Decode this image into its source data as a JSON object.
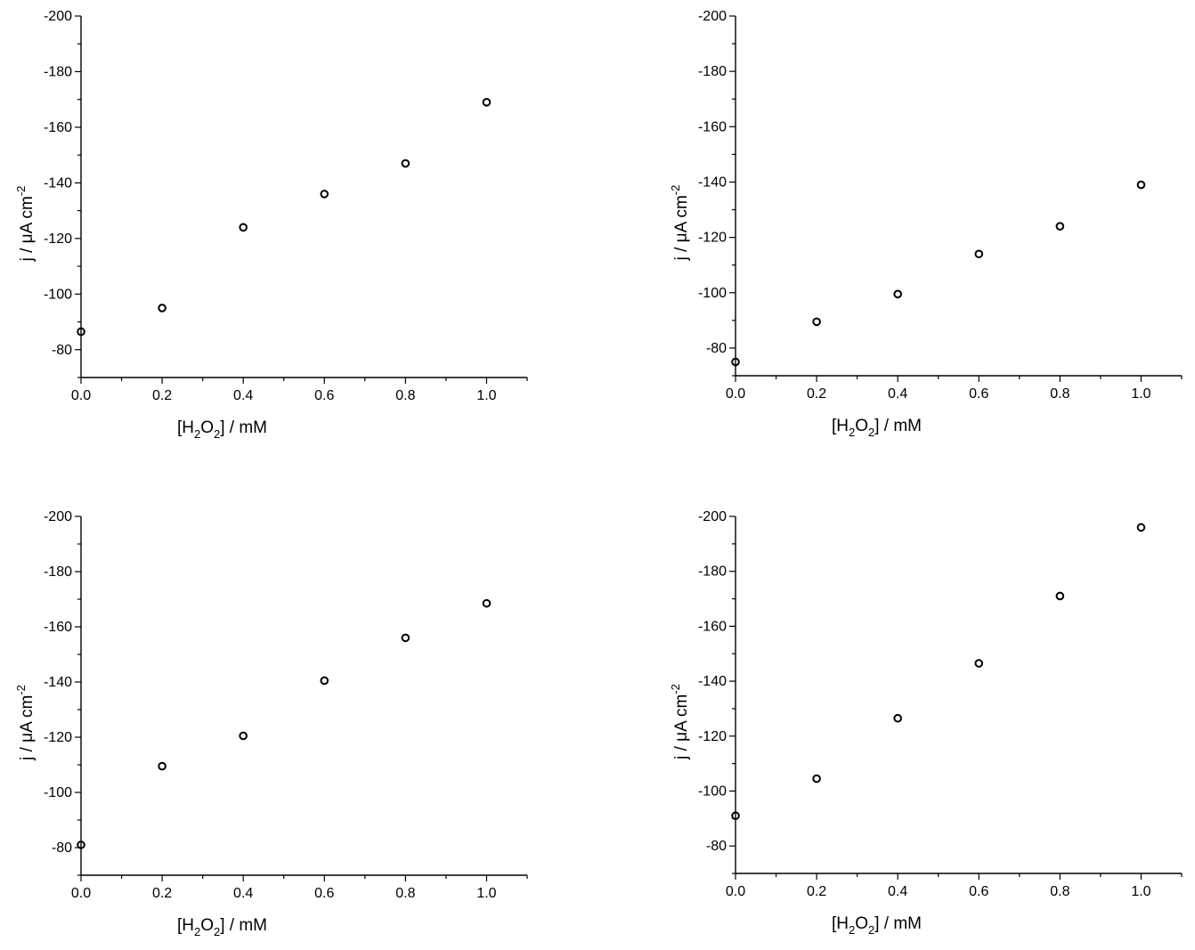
{
  "chart_data": [
    {
      "type": "scatter",
      "x": [
        0.0,
        0.2,
        0.4,
        0.6,
        0.8,
        1.0
      ],
      "y": [
        -86.5,
        -95,
        -124,
        -136,
        -147,
        -169
      ],
      "xlim": [
        0.0,
        1.1
      ],
      "ylim": [
        -70,
        -200
      ],
      "xticks": [
        "0.0",
        "0.2",
        "0.4",
        "0.6",
        "0.8",
        "1.0"
      ],
      "yticks": [
        "-80",
        "-100",
        "-120",
        "-140",
        "-160",
        "-180",
        "-200"
      ],
      "xlabel": {
        "pre": "[H",
        "sub1": "2",
        "mid": "O",
        "sub2": "2",
        "post": "] / mM"
      },
      "ylabel": {
        "main": "j / μA cm",
        "sup": "-2"
      },
      "marker": "open-circle",
      "grid": false
    },
    {
      "type": "scatter",
      "x": [
        0.0,
        0.2,
        0.4,
        0.6,
        0.8,
        1.0
      ],
      "y": [
        -75,
        -89.5,
        -99.5,
        -114,
        -124,
        -139
      ],
      "xlim": [
        0.0,
        1.1
      ],
      "ylim": [
        -70,
        -200
      ],
      "xticks": [
        "0.0",
        "0.2",
        "0.4",
        "0.6",
        "0.8",
        "1.0"
      ],
      "yticks": [
        "-80",
        "-100",
        "-120",
        "-140",
        "-160",
        "-180",
        "-200"
      ],
      "xlabel": {
        "pre": "[H",
        "sub1": "2",
        "mid": "O",
        "sub2": "2",
        "post": "] / mM"
      },
      "ylabel": {
        "main": "j / μA cm",
        "sup": "-2"
      },
      "marker": "open-circle",
      "grid": false
    },
    {
      "type": "scatter",
      "x": [
        0.0,
        0.2,
        0.4,
        0.6,
        0.8,
        1.0
      ],
      "y": [
        -81,
        -109.5,
        -120.5,
        -140.5,
        -156,
        -168.5
      ],
      "xlim": [
        0.0,
        1.1
      ],
      "ylim": [
        -70,
        -200
      ],
      "xticks": [
        "0.0",
        "0.2",
        "0.4",
        "0.6",
        "0.8",
        "1.0"
      ],
      "yticks": [
        "-80",
        "-100",
        "-120",
        "-140",
        "-160",
        "-180",
        "-200"
      ],
      "xlabel": {
        "pre": "[H",
        "sub1": "2",
        "mid": "O",
        "sub2": "2",
        "post": "] / mM"
      },
      "ylabel": {
        "main": "j / μA cm",
        "sup": "-2"
      },
      "marker": "open-circle",
      "grid": false
    },
    {
      "type": "scatter",
      "x": [
        0.0,
        0.2,
        0.4,
        0.6,
        0.8,
        1.0
      ],
      "y": [
        -91,
        -104.5,
        -126.5,
        -146.5,
        -171,
        -196
      ],
      "xlim": [
        0.0,
        1.1
      ],
      "ylim": [
        -70,
        -200
      ],
      "xticks": [
        "0.0",
        "0.2",
        "0.4",
        "0.6",
        "0.8",
        "1.0"
      ],
      "yticks": [
        "-80",
        "-100",
        "-120",
        "-140",
        "-160",
        "-180",
        "-200"
      ],
      "xlabel": {
        "pre": "[H",
        "sub1": "2",
        "mid": "O",
        "sub2": "2",
        "post": "] / mM"
      },
      "ylabel": {
        "main": "j / μA cm",
        "sup": "-2"
      },
      "marker": "open-circle",
      "grid": false
    }
  ]
}
